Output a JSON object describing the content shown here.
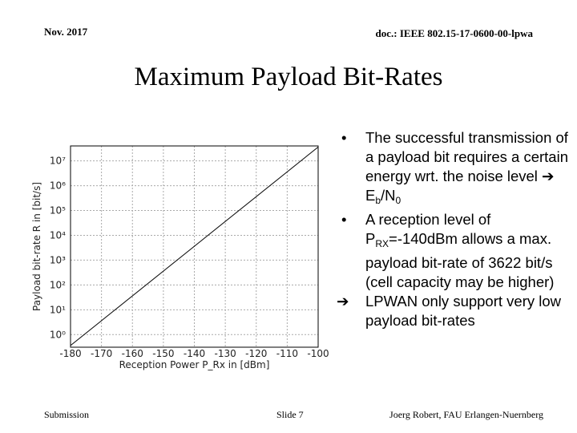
{
  "header": {
    "date": "Nov. 2017",
    "doc": "doc.: IEEE 802.15-17-0600-00-lpwa"
  },
  "title": "Maximum Payload Bit-Rates",
  "bullets": [
    [
      "The successful transmission of a payload bit requires a certain energy wrt. the noise level ➔ E",
      "b",
      "/N",
      "0"
    ],
    [
      "A reception level of P",
      "RX",
      "=-140dBm allows a max. payload bit-rate of 3622 bit/s (cell capacity may be higher)"
    ],
    [
      "LPWAN only support very low payload bit-rates"
    ]
  ],
  "footer": {
    "left": "Submission",
    "center": "Slide 7",
    "right": "Joerg Robert, FAU Erlangen-Nuernberg"
  },
  "chart_data": {
    "type": "line",
    "x_label": "Reception Power P_Rx in [dBm]",
    "y_label": "Payload bit-rate R in [bit/s]",
    "y_log": true,
    "grid": true,
    "xlim": [
      -180,
      -100
    ],
    "xticks": [
      -180,
      -170,
      -160,
      -150,
      -140,
      -130,
      -120,
      -110,
      -100
    ],
    "ylim": [
      0.31,
      40000000
    ],
    "yticks": [
      {
        "value": 1,
        "label": "10⁰"
      },
      {
        "value": 10,
        "label": "10¹"
      },
      {
        "value": 100,
        "label": "10²"
      },
      {
        "value": 1000,
        "label": "10³"
      },
      {
        "value": 10000,
        "label": "10⁴"
      },
      {
        "value": 100000,
        "label": "10⁵"
      },
      {
        "value": 1000000,
        "label": "10⁶"
      },
      {
        "value": 10000000,
        "label": "10⁷"
      }
    ],
    "x": [
      -180,
      -100
    ],
    "series": [
      {
        "color": "#000000",
        "values": [
          0.3622,
          36220000
        ]
      }
    ]
  }
}
